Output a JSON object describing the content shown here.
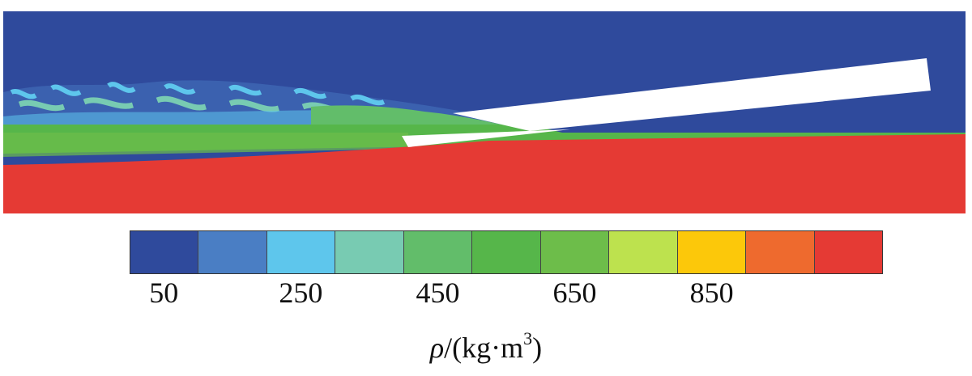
{
  "legend": {
    "symbol": "ρ",
    "unit_prefix": "/(kg·m",
    "unit_exponent": "3",
    "unit_suffix": ")",
    "ticks": [
      "50",
      "250",
      "450",
      "650",
      "850"
    ],
    "colors": [
      "#2f4a9c",
      "#4a7ec4",
      "#5ec6ec",
      "#78cbb2",
      "#62bd6a",
      "#56b64a",
      "#6dbd4a",
      "#bde24e",
      "#fcc80a",
      "#ee6a2e",
      "#e53a34"
    ]
  },
  "contour": {
    "background_color": "#2f4a9c",
    "liquid_color": "#e53a34",
    "mixture_color": "#56b64a",
    "plate_color": "#ffffff"
  }
}
